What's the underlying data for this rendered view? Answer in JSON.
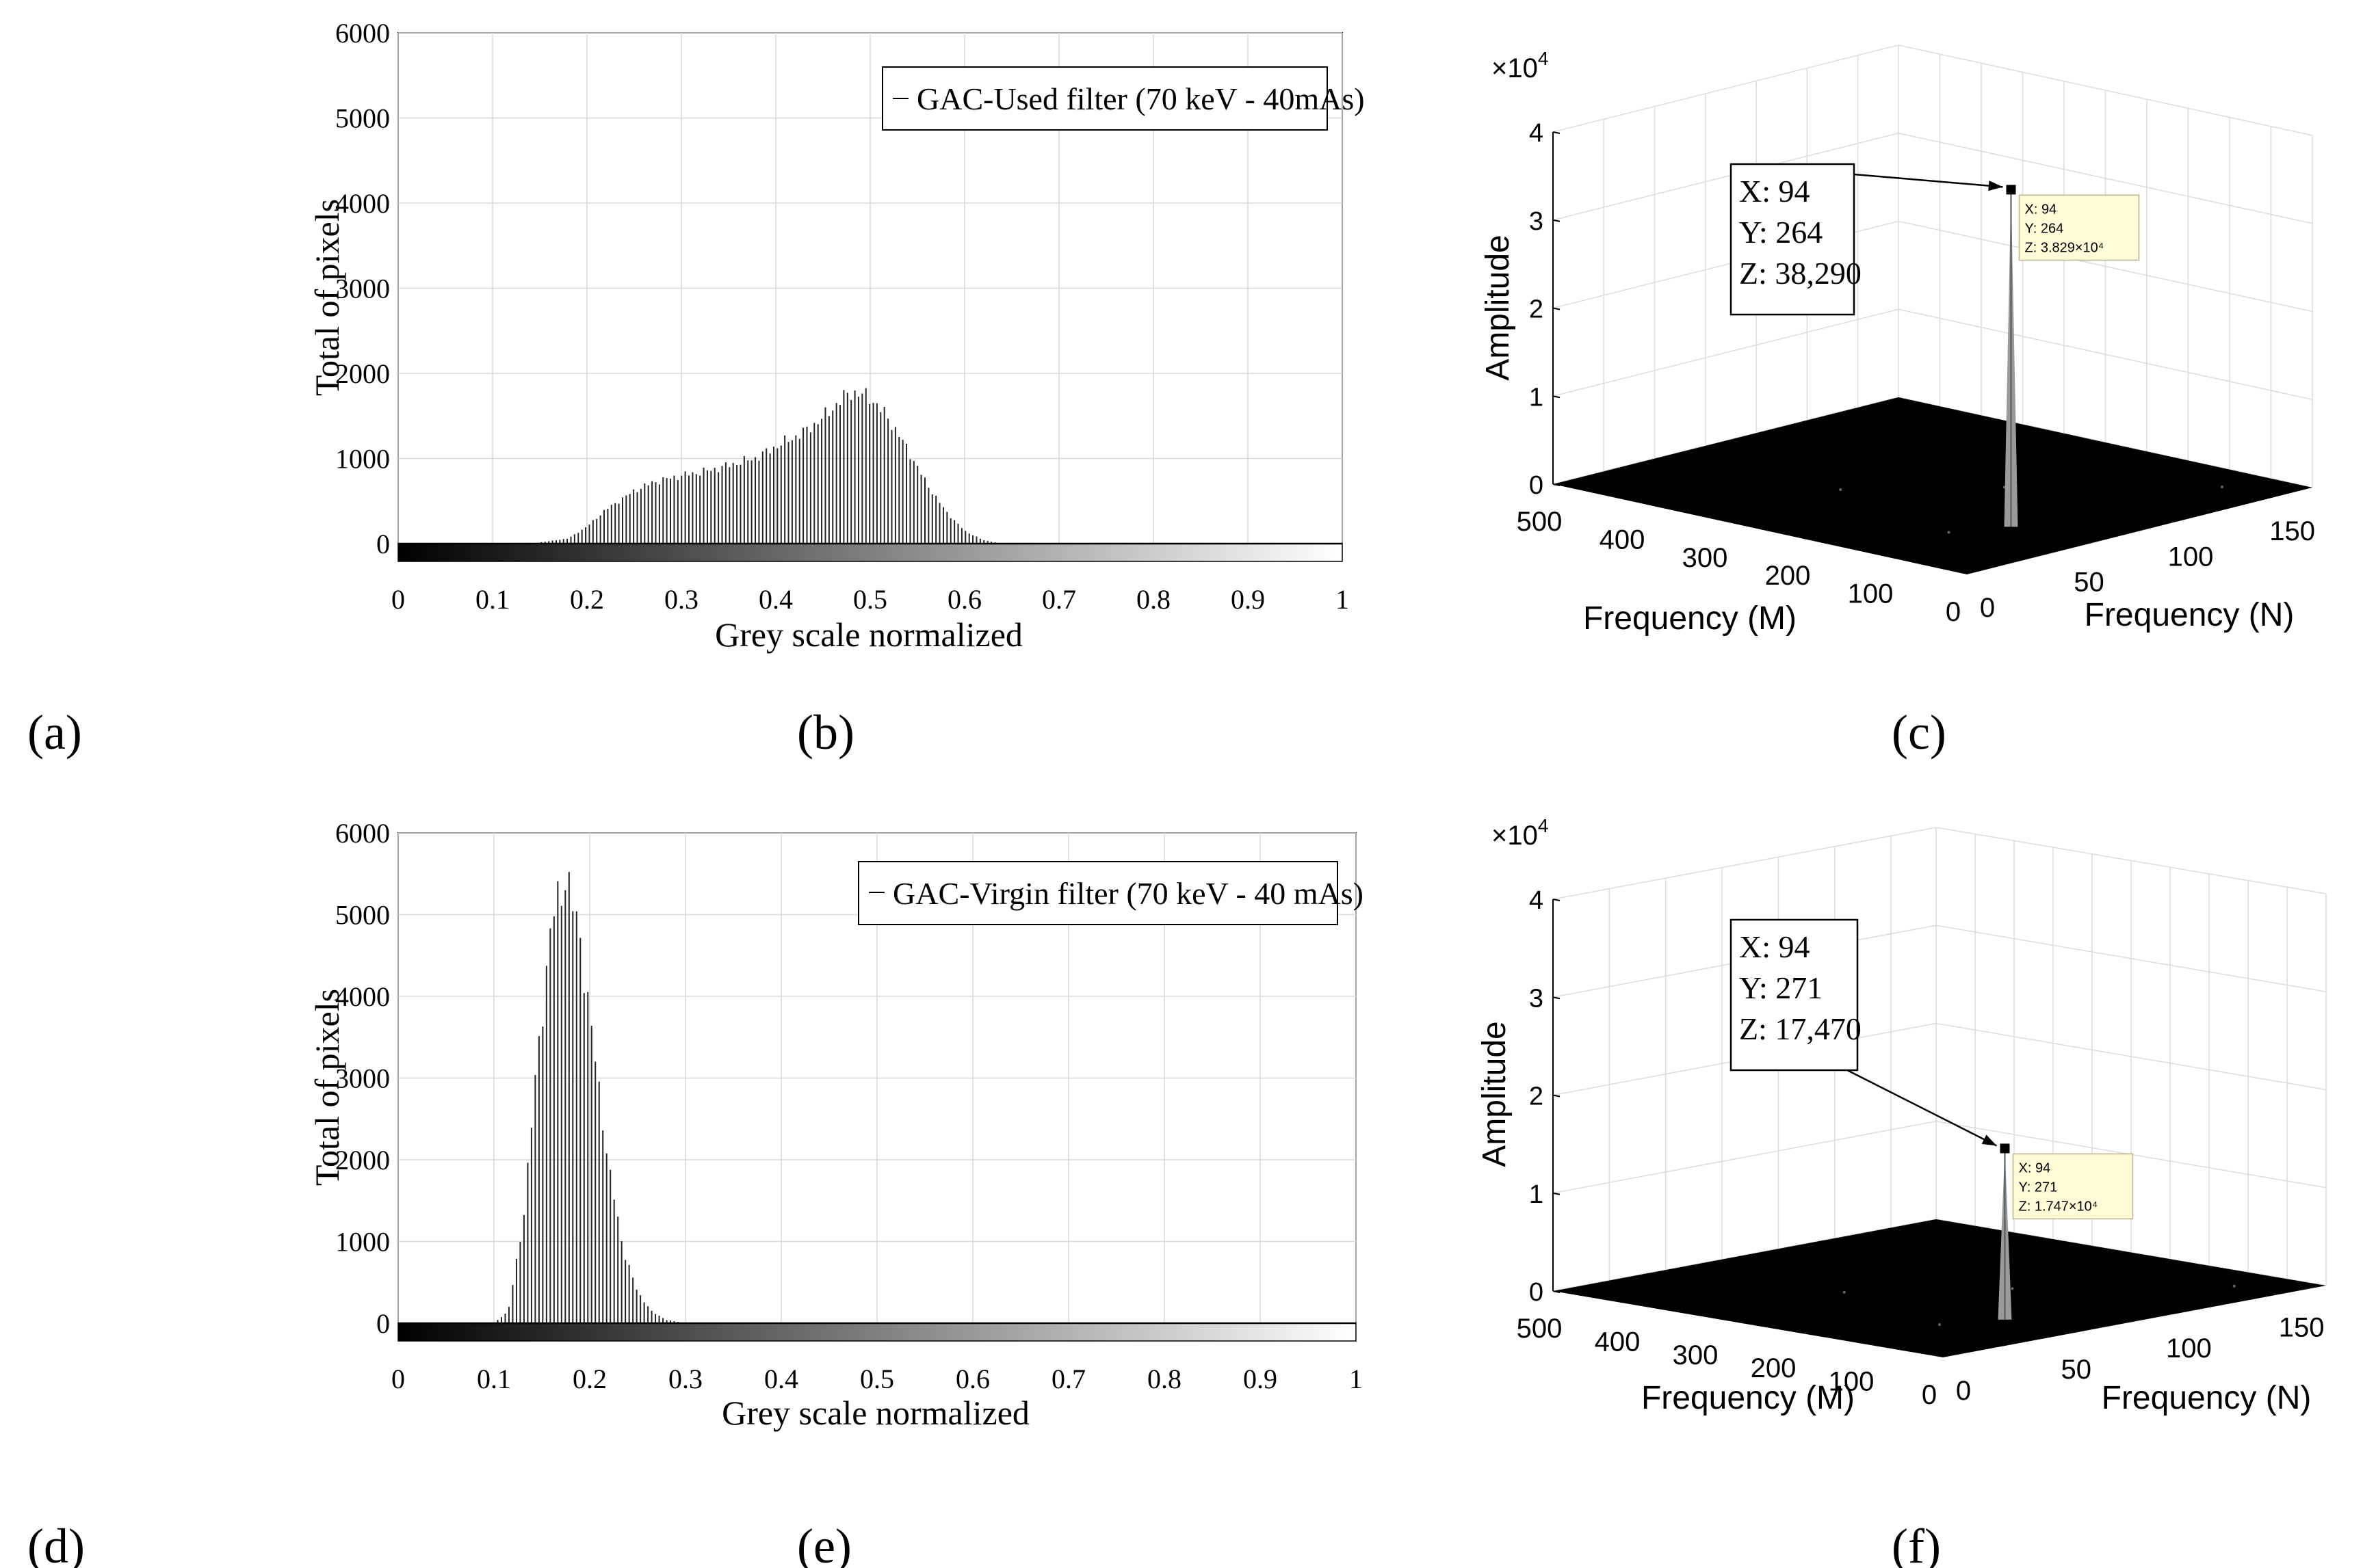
{
  "panel_labels": [
    "(a)",
    "(b)",
    "(c)",
    "(d)",
    "(e)",
    "(f)"
  ],
  "chart_data": [
    {
      "type": "bar",
      "panel": "b",
      "xlabel": "Grey scale normalized",
      "ylabel": "Total of pixels",
      "legend": "GAC-Used filter (70 keV - 40mAs)",
      "legend_position": "top-right",
      "xlim": [
        0,
        1
      ],
      "ylim": [
        0,
        6000
      ],
      "xticks": [
        0,
        0.1,
        0.2,
        0.3,
        0.4,
        0.5,
        0.6,
        0.7,
        0.8,
        0.9,
        1
      ],
      "xtick_labels": [
        "0",
        "0.1",
        "0.2",
        "0.3",
        "0.4",
        "0.5",
        "0.6",
        "0.7",
        "0.8",
        "0.9",
        "1"
      ],
      "yticks": [
        0,
        1000,
        2000,
        3000,
        4000,
        5000,
        6000
      ],
      "ytick_labels": [
        "0",
        "1000",
        "2000",
        "3000",
        "4000",
        "5000",
        "6000"
      ],
      "grid": true,
      "colorbar": "greyscale",
      "envelope": {
        "x": [
          0.14,
          0.18,
          0.2,
          0.22,
          0.25,
          0.27,
          0.3,
          0.33,
          0.35,
          0.38,
          0.4,
          0.43,
          0.45,
          0.47,
          0.48,
          0.5,
          0.52,
          0.54,
          0.56,
          0.58,
          0.6,
          0.62,
          0.64
        ],
        "y": [
          0,
          60,
          200,
          400,
          620,
          720,
          800,
          860,
          920,
          1010,
          1140,
          1310,
          1480,
          1700,
          1780,
          1720,
          1460,
          1100,
          700,
          380,
          150,
          40,
          0
        ]
      }
    },
    {
      "type": "surface3d",
      "panel": "c",
      "xlabel": "Frequency (M)",
      "ylabel": "Frequency (N)",
      "zlabel": "Amplitude",
      "z_multiplier": "×10",
      "z_multiplier_exp": "4",
      "mlim": [
        0,
        500
      ],
      "nlim": [
        0,
        170
      ],
      "zlim": [
        0,
        40000
      ],
      "m_tick_labels": [
        "0",
        "100",
        "200",
        "300",
        "400",
        "500"
      ],
      "n_tick_labels": [
        "0",
        "50",
        "100",
        "150"
      ],
      "z_tick_labels": [
        "0",
        "1",
        "2",
        "3",
        "4"
      ],
      "peak": {
        "x": 94,
        "y": 264,
        "z": 38290
      },
      "datatip": [
        "X: 94",
        "Y: 264",
        "Z: 3.829×10⁴"
      ],
      "annotation": [
        "X: 94",
        "Y: 264",
        "Z: 38,290"
      ]
    },
    {
      "type": "bar",
      "panel": "e",
      "xlabel": "Grey scale normalized",
      "ylabel": "Total of pixels",
      "legend": "GAC-Virgin filter (70 keV - 40 mAs)",
      "legend_position": "top-right",
      "xlim": [
        0,
        1
      ],
      "ylim": [
        0,
        6000
      ],
      "xticks": [
        0,
        0.1,
        0.2,
        0.3,
        0.4,
        0.5,
        0.6,
        0.7,
        0.8,
        0.9,
        1
      ],
      "xtick_labels": [
        "0",
        "0.1",
        "0.2",
        "0.3",
        "0.4",
        "0.5",
        "0.6",
        "0.7",
        "0.8",
        "0.9",
        "1"
      ],
      "yticks": [
        0,
        1000,
        2000,
        3000,
        4000,
        5000,
        6000
      ],
      "ytick_labels": [
        "0",
        "1000",
        "2000",
        "3000",
        "4000",
        "5000",
        "6000"
      ],
      "grid": true,
      "colorbar": "greyscale",
      "envelope": {
        "x": [
          0.1,
          0.115,
          0.13,
          0.145,
          0.16,
          0.175,
          0.19,
          0.205,
          0.22,
          0.235,
          0.25,
          0.265,
          0.28,
          0.3
        ],
        "y": [
          0,
          150,
          1200,
          3200,
          4900,
          5500,
          4700,
          3300,
          1900,
          900,
          380,
          140,
          40,
          0
        ]
      }
    },
    {
      "type": "surface3d",
      "panel": "f",
      "xlabel": "Frequency (M)",
      "ylabel": "Frequency (N)",
      "zlabel": "Amplitude",
      "z_multiplier": "×10",
      "z_multiplier_exp": "4",
      "mlim": [
        0,
        500
      ],
      "nlim": [
        0,
        170
      ],
      "zlim": [
        0,
        40000
      ],
      "m_tick_labels": [
        "0",
        "100",
        "200",
        "300",
        "400",
        "500"
      ],
      "n_tick_labels": [
        "0",
        "50",
        "100",
        "150"
      ],
      "z_tick_labels": [
        "0",
        "1",
        "2",
        "3",
        "4"
      ],
      "peak": {
        "x": 94,
        "y": 271,
        "z": 17470
      },
      "datatip": [
        "X: 94",
        "Y: 271",
        "Z: 1.747×10⁴"
      ],
      "annotation": [
        "X: 94",
        "Y: 271",
        "Z: 17,470"
      ]
    }
  ]
}
